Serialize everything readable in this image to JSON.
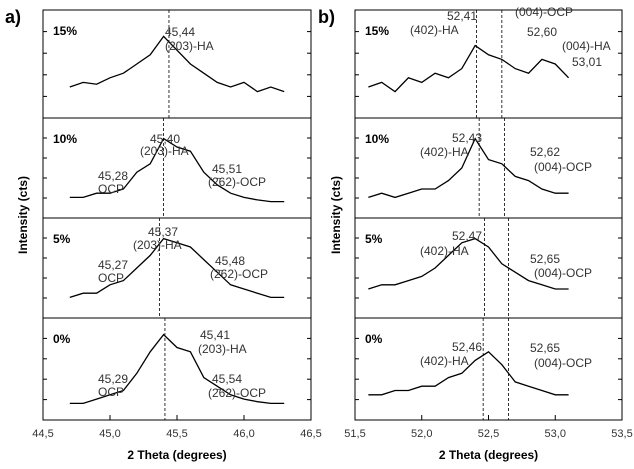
{
  "chart_data": [
    {
      "type": "line",
      "panel_label": "a)",
      "xlabel": "2 Theta (degrees)",
      "ylabel": "Intensity (cts)",
      "color": "#000000",
      "xlim": [
        44.5,
        46.5
      ],
      "xticks": [
        {
          "value": 44.5,
          "label": "44,5"
        },
        {
          "value": 45.0,
          "label": "45,0"
        },
        {
          "value": 45.5,
          "label": "45,5"
        },
        {
          "value": 46.0,
          "label": "46,0"
        },
        {
          "value": 46.5,
          "label": "46,5"
        }
      ],
      "ylim": [
        0,
        1
      ],
      "x": [
        44.7,
        44.8,
        44.9,
        45.0,
        45.1,
        45.2,
        45.3,
        45.4,
        45.5,
        45.6,
        45.7,
        45.8,
        45.9,
        46.0,
        46.1,
        46.2,
        46.3
      ],
      "subplots": [
        {
          "label": "15%",
          "values": [
            0.25,
            0.3,
            0.28,
            0.35,
            0.4,
            0.5,
            0.6,
            0.8,
            0.65,
            0.5,
            0.4,
            0.3,
            0.25,
            0.3,
            0.2,
            0.25,
            0.2
          ],
          "vlines": [
            45.44
          ],
          "annotations": [
            "45,44",
            "(203)-HA"
          ]
        },
        {
          "label": "10%",
          "values": [
            0.15,
            0.15,
            0.2,
            0.2,
            0.25,
            0.45,
            0.55,
            0.85,
            0.75,
            0.7,
            0.45,
            0.3,
            0.2,
            0.15,
            0.12,
            0.1,
            0.1
          ],
          "vlines": [
            45.4
          ],
          "annotations": [
            "45,40",
            "(203)-HA",
            "45,28",
            "OCP",
            "45,51",
            "(2̄62)-OCP"
          ]
        },
        {
          "label": "5%",
          "values": [
            0.15,
            0.2,
            0.2,
            0.3,
            0.35,
            0.5,
            0.65,
            0.85,
            0.8,
            0.75,
            0.6,
            0.45,
            0.3,
            0.25,
            0.2,
            0.15,
            0.15
          ],
          "vlines": [
            45.37
          ],
          "annotations": [
            "45,37",
            "(203)-HA",
            "45,27",
            "OCP",
            "45,48",
            "(2̄62)-OCP"
          ]
        },
        {
          "label": "0%",
          "values": [
            0.1,
            0.1,
            0.15,
            0.2,
            0.25,
            0.45,
            0.7,
            0.9,
            0.75,
            0.7,
            0.4,
            0.3,
            0.2,
            0.15,
            0.12,
            0.1,
            0.1
          ],
          "vlines": [
            45.41
          ],
          "annotations": [
            "45,41",
            "(203)-HA",
            "45,29",
            "OCP",
            "45,54",
            "(2̄62)-OCP"
          ]
        }
      ]
    },
    {
      "type": "line",
      "panel_label": "b)",
      "xlabel": "2 Theta (degrees)",
      "ylabel": "Intensity (cts)",
      "color": "#000000",
      "xlim": [
        51.5,
        53.5
      ],
      "xticks": [
        {
          "value": 51.5,
          "label": "51,5"
        },
        {
          "value": 52.0,
          "label": "52,0"
        },
        {
          "value": 52.5,
          "label": "52,5"
        },
        {
          "value": 53.0,
          "label": "53,0"
        },
        {
          "value": 53.5,
          "label": "53,5"
        }
      ],
      "ylim": [
        0,
        1
      ],
      "x": [
        51.6,
        51.7,
        51.8,
        51.9,
        52.0,
        52.1,
        52.2,
        52.3,
        52.4,
        52.5,
        52.6,
        52.7,
        52.8,
        52.9,
        53.0,
        53.1
      ],
      "subplots": [
        {
          "label": "15%",
          "values": [
            0.25,
            0.3,
            0.2,
            0.35,
            0.3,
            0.4,
            0.35,
            0.45,
            0.7,
            0.6,
            0.55,
            0.45,
            0.4,
            0.55,
            0.5,
            0.35
          ],
          "vlines": [
            52.41,
            52.6
          ],
          "annotations": [
            "52,41",
            "(402)-HA",
            "(004)-OCP",
            "52,60",
            "(004)-HA",
            "53,01"
          ]
        },
        {
          "label": "10%",
          "values": [
            0.15,
            0.2,
            0.15,
            0.2,
            0.25,
            0.25,
            0.35,
            0.5,
            0.85,
            0.6,
            0.55,
            0.4,
            0.35,
            0.25,
            0.2,
            0.2
          ],
          "vlines": [
            52.43,
            52.62
          ],
          "annotations": [
            "52,43",
            "(402)-HA",
            "52,62",
            "(004)-OCP"
          ]
        },
        {
          "label": "5%",
          "values": [
            0.25,
            0.3,
            0.3,
            0.35,
            0.4,
            0.5,
            0.65,
            0.8,
            0.85,
            0.75,
            0.55,
            0.45,
            0.35,
            0.3,
            0.25,
            0.25
          ],
          "vlines": [
            52.47,
            52.65
          ],
          "annotations": [
            "52,47",
            "(402)-HA",
            "52,65",
            "(004)-OCP"
          ]
        },
        {
          "label": "0%",
          "values": [
            0.2,
            0.2,
            0.25,
            0.25,
            0.3,
            0.3,
            0.4,
            0.45,
            0.6,
            0.7,
            0.55,
            0.35,
            0.3,
            0.25,
            0.2,
            0.2
          ],
          "vlines": [
            52.46,
            52.65
          ],
          "annotations": [
            "52,46",
            "(402)-HA",
            "52,65",
            "(004)-OCP"
          ]
        }
      ]
    }
  ]
}
